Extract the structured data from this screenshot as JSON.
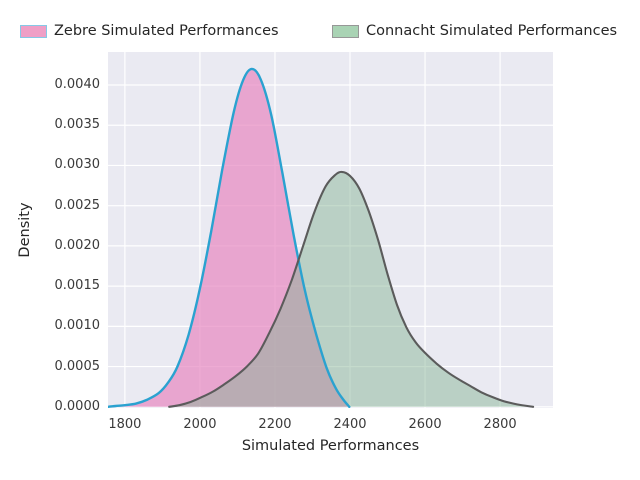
{
  "legend": {
    "items": [
      {
        "label": "Zebre Simulated Performances",
        "fill": "#ef9fc6",
        "border": "#86c8e6"
      },
      {
        "label": "Connacht Simulated Performances",
        "fill": "#a9d3b4",
        "border": "#979797"
      }
    ]
  },
  "chart_data": {
    "type": "area",
    "subtype": "kde-density",
    "title": "",
    "xlabel": "Simulated Performances",
    "ylabel": "Density",
    "xlim": [
      1755,
      2941
    ],
    "ylim": [
      0,
      0.00441
    ],
    "grid": true,
    "background": "#eaeaf2",
    "grid_color": "#ffffff",
    "legend_position": "top outside, 2 columns",
    "xticks": [
      {
        "value": 1800,
        "label": "1800"
      },
      {
        "value": 2000,
        "label": "2000"
      },
      {
        "value": 2200,
        "label": "2200"
      },
      {
        "value": 2400,
        "label": "2400"
      },
      {
        "value": 2600,
        "label": "2600"
      },
      {
        "value": 2800,
        "label": "2800"
      }
    ],
    "yticks": [
      {
        "value": 0.0,
        "label": "0.0000"
      },
      {
        "value": 0.0005,
        "label": "0.0005"
      },
      {
        "value": 0.001,
        "label": "0.0010"
      },
      {
        "value": 0.0015,
        "label": "0.0015"
      },
      {
        "value": 0.002,
        "label": "0.0020"
      },
      {
        "value": 0.0025,
        "label": "0.0025"
      },
      {
        "value": 0.003,
        "label": "0.0030"
      },
      {
        "value": 0.0035,
        "label": "0.0035"
      },
      {
        "value": 0.004,
        "label": "0.0040"
      }
    ],
    "series": [
      {
        "name": "Zebre Simulated Performances",
        "line_color": "#2aa2d0",
        "line_width": 2.4,
        "fill_color": "rgba(231,136,193,0.70)",
        "peak": {
          "x": 2138,
          "y": 0.0042
        },
        "points": [
          [
            1756,
            0
          ],
          [
            1775,
            1e-05
          ],
          [
            1800,
            2e-05
          ],
          [
            1830,
            4e-05
          ],
          [
            1860,
            9e-05
          ],
          [
            1890,
            0.00017
          ],
          [
            1915,
            0.0003
          ],
          [
            1940,
            0.0005
          ],
          [
            1970,
            0.0009
          ],
          [
            2000,
            0.00147
          ],
          [
            2030,
            0.00218
          ],
          [
            2060,
            0.00296
          ],
          [
            2090,
            0.00366
          ],
          [
            2115,
            0.00406
          ],
          [
            2138,
            0.0042
          ],
          [
            2162,
            0.00407
          ],
          [
            2190,
            0.00363
          ],
          [
            2220,
            0.0029
          ],
          [
            2250,
            0.00213
          ],
          [
            2280,
            0.00144
          ],
          [
            2310,
            0.0009
          ],
          [
            2338,
            0.00048
          ],
          [
            2362,
            0.00023
          ],
          [
            2382,
            9e-05
          ],
          [
            2398,
            0
          ]
        ]
      },
      {
        "name": "Connacht Simulated Performances",
        "line_color": "#5b5b5b",
        "line_width": 2.1,
        "fill_color": "rgba(134,180,148,0.48)",
        "peak": {
          "x": 2378,
          "y": 0.00292
        },
        "points": [
          [
            1918,
            0
          ],
          [
            1945,
            2e-05
          ],
          [
            1975,
            6e-05
          ],
          [
            2005,
            0.00012
          ],
          [
            2035,
            0.00019
          ],
          [
            2065,
            0.00028
          ],
          [
            2095,
            0.00038
          ],
          [
            2125,
            0.0005
          ],
          [
            2155,
            0.00066
          ],
          [
            2185,
            0.00092
          ],
          [
            2215,
            0.00122
          ],
          [
            2245,
            0.00158
          ],
          [
            2275,
            0.002
          ],
          [
            2305,
            0.00242
          ],
          [
            2335,
            0.00274
          ],
          [
            2360,
            0.00288
          ],
          [
            2378,
            0.00292
          ],
          [
            2400,
            0.00287
          ],
          [
            2425,
            0.00271
          ],
          [
            2450,
            0.00243
          ],
          [
            2475,
            0.00207
          ],
          [
            2500,
            0.00165
          ],
          [
            2525,
            0.00127
          ],
          [
            2550,
            0.00099
          ],
          [
            2575,
            0.0008
          ],
          [
            2600,
            0.00067
          ],
          [
            2630,
            0.00054
          ],
          [
            2660,
            0.00043
          ],
          [
            2690,
            0.00034
          ],
          [
            2720,
            0.00026
          ],
          [
            2750,
            0.00018
          ],
          [
            2780,
            0.00012
          ],
          [
            2810,
            7e-05
          ],
          [
            2845,
            3e-05
          ],
          [
            2888,
            0
          ]
        ]
      }
    ]
  }
}
